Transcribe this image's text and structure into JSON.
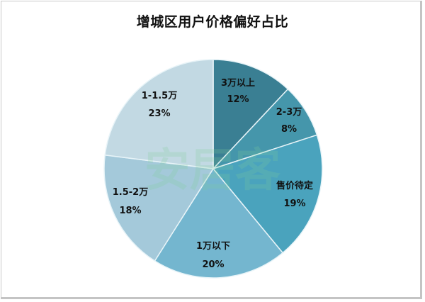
{
  "chart_data": {
    "type": "pie",
    "title": "增城区用户价格偏好占比",
    "start_angle": "12 o'clock, clockwise",
    "categories": [
      "3万以上",
      "2-3万",
      "售价待定",
      "1万以下",
      "1.5-2万",
      "1-1.5万"
    ],
    "values": [
      12,
      8,
      19,
      20,
      18,
      23
    ],
    "value_labels": [
      "12%",
      "8%",
      "19%",
      "20%",
      "18%",
      "23%"
    ],
    "colors": [
      "#3a7f93",
      "#4596ab",
      "#4aa3bd",
      "#74b6cf",
      "#a4c9da",
      "#c2d9e3"
    ],
    "legend": "none (labels inside slices)",
    "watermark": "安居客"
  },
  "title": "增城区用户价格偏好占比",
  "slices": [
    {
      "name": "3万以上",
      "pct": "12%"
    },
    {
      "name": "2-3万",
      "pct": "8%"
    },
    {
      "name": "售价待定",
      "pct": "19%"
    },
    {
      "name": "1万以下",
      "pct": "20%"
    },
    {
      "name": "1.5-2万",
      "pct": "18%"
    },
    {
      "name": "1-1.5万",
      "pct": "23%"
    }
  ],
  "watermark": "安居客"
}
